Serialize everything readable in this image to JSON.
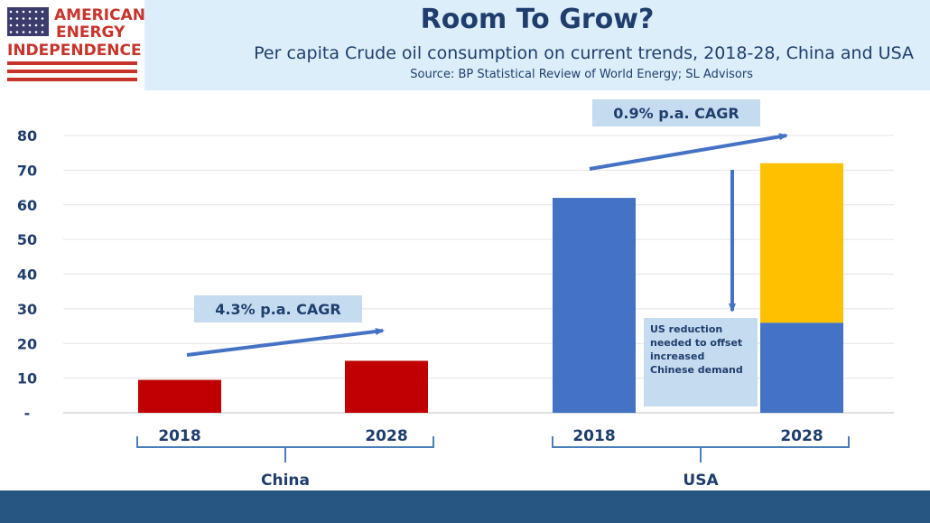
{
  "logo": {
    "line1": "AMERICAN",
    "line2": "ENERGY",
    "line3": "INDEPENDENCE",
    "icon": "us-flag-icon"
  },
  "header": {
    "title": "Room To Grow?",
    "subtitle": "Per capita Crude oil consumption on current trends, 2018-28, China and USA",
    "source": "Source: BP Statistical Review of World Energy; SL Advisors"
  },
  "colors": {
    "china": "#c00000",
    "usa": "#4472c4",
    "offset": "#ffc000",
    "text": "#1f3e6d",
    "header_bg": "#dbeef9",
    "callout_bg": "#c5dbef",
    "footer": "#285683"
  },
  "annotations": {
    "china_cagr": "4.3% p.a. CAGR",
    "usa_cagr": "0.9% p.a. CAGR",
    "offset_note": [
      "US reduction",
      "needed to offset",
      "increased",
      "Chinese demand"
    ]
  },
  "chart_data": {
    "type": "bar",
    "stacked": true,
    "ylim": [
      0,
      80
    ],
    "yticks": [
      {
        "value": 0,
        "label": "-"
      },
      {
        "value": 10,
        "label": "10"
      },
      {
        "value": 20,
        "label": "20"
      },
      {
        "value": 30,
        "label": "30"
      },
      {
        "value": 40,
        "label": "40"
      },
      {
        "value": 50,
        "label": "50"
      },
      {
        "value": 60,
        "label": "60"
      },
      {
        "value": 70,
        "label": "70"
      },
      {
        "value": 80,
        "label": "80"
      }
    ],
    "grid": true,
    "groups": [
      "China",
      "USA"
    ],
    "categories": [
      "2018",
      "2028",
      "2018",
      "2028"
    ],
    "series": [
      {
        "values": [
          9.5,
          15,
          62,
          26
        ]
      },
      {
        "values": [
          0,
          0,
          0,
          46
        ]
      }
    ]
  }
}
